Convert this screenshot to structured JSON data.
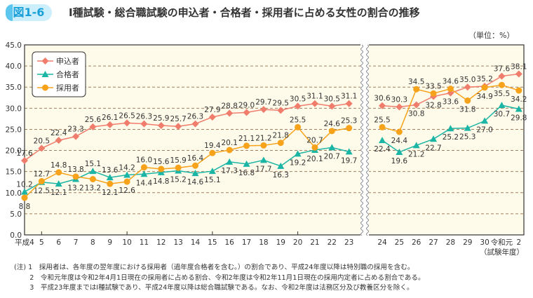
{
  "figure_badge": "図1-6",
  "title": "Ⅰ種試験・総合職試験の申込者・合格者・採用者に占める女性の割合の推移",
  "unit_label": "（単位：%）",
  "chart_data": {
    "type": "line",
    "ylim": [
      0,
      45
    ],
    "yticks": [
      "0.0",
      "5.0",
      "10.0",
      "15.0",
      "20.0",
      "25.0",
      "30.0",
      "35.0",
      "40.0",
      "45.0"
    ],
    "grid": true,
    "legend_placement": "top-left",
    "axis_break": "between 23 and 24",
    "xlabel": "（試験年度）",
    "categories_left": [
      "平成4",
      "5",
      "6",
      "7",
      "8",
      "9",
      "10",
      "11",
      "12",
      "13",
      "14",
      "15",
      "16",
      "17",
      "18",
      "19",
      "20",
      "21",
      "22",
      "23"
    ],
    "categories_right": [
      "24",
      "25",
      "26",
      "27",
      "28",
      "29",
      "30",
      "令和元",
      "2"
    ],
    "series": [
      {
        "name": "申込者",
        "color": "#f07c6c",
        "marker": "diamond",
        "left": [
          17.6,
          20.5,
          22.4,
          23.3,
          25.6,
          26.1,
          26.5,
          26.3,
          25.9,
          25.7,
          26.3,
          27.9,
          28.8,
          29.0,
          29.7,
          29.5,
          30.5,
          31.1,
          30.5,
          31.1
        ],
        "right": [
          30.6,
          30.3,
          30.8,
          32.8,
          33.6,
          35.0,
          35.2,
          37.6,
          38.1
        ]
      },
      {
        "name": "合格者",
        "color": "#1ab5a5",
        "marker": "triangle",
        "left": [
          10.2,
          12.5,
          12.1,
          13.2,
          15.1,
          13.6,
          14.2,
          14.4,
          14.8,
          15.2,
          14.6,
          15.1,
          17.3,
          16.8,
          17.7,
          16.3,
          19.2,
          20.1,
          20.7,
          19.7
        ],
        "right": [
          22.4,
          19.6,
          21.2,
          22.7,
          25.2,
          25.3,
          27.0,
          30.7,
          29.8
        ]
      },
      {
        "name": "採用者",
        "color": "#f7a21b",
        "marker": "circle",
        "left": [
          8.8,
          12.7,
          14.8,
          13.8,
          13.2,
          12.1,
          12.6,
          16.0,
          15.6,
          15.9,
          16.4,
          19.4,
          20.1,
          21.1,
          21.2,
          21.8,
          25.5,
          20.7,
          24.6,
          25.3
        ],
        "right": [
          25.5,
          24.4,
          34.5,
          33.5,
          34.6,
          31.8,
          34.9,
          35.5,
          34.2
        ]
      }
    ],
    "plot_background": "#fffbea"
  },
  "notes": [
    "(注) 1　採用者は、各年度の翌年度における採用者（過年度合格者を含む。）の割合であり、平成24年度以降は特別職の採用を含む。",
    "　　 2　令和元年度は令和2年4月1日現在の採用者に占める割合、令和2年度は令和2年11月1日現在の採用内定者に占める割合である。",
    "　　 3　平成23年度まではⅠ種試験であり、平成24年度以降は総合職試験である。なお、令和2年度は法務区分及び教養区分を除く。"
  ]
}
